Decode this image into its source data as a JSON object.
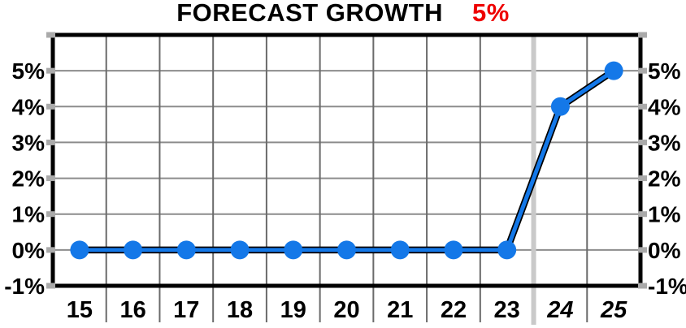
{
  "title": {
    "text": "FORECAST GROWTH",
    "value": "5%"
  },
  "colors": {
    "background": "#ffffff",
    "text": "#000000",
    "title_value": "#ee0000",
    "frame": "#000000",
    "grid_horizontal": "#8c8c8c",
    "grid_vertical": "#6a6a6a",
    "forecast_divider": "#c9c9c9",
    "axis_tick": "#aaaaaa",
    "series": "#1478e8",
    "series_edge": "#000000"
  },
  "chart_data": {
    "type": "line",
    "title": "FORECAST GROWTH",
    "title_value": "5%",
    "x_labels": [
      "15",
      "16",
      "17",
      "18",
      "19",
      "20",
      "21",
      "22",
      "23",
      "24",
      "25"
    ],
    "values": [
      0,
      0,
      0,
      0,
      0,
      0,
      0,
      0,
      0,
      4,
      5
    ],
    "forecast_start_index": 9,
    "forecast_labels": [
      "24",
      "25"
    ],
    "yticks": [
      5,
      4,
      3,
      2,
      1,
      0,
      -1
    ],
    "ytick_labels": [
      "5%",
      "4%",
      "3%",
      "2%",
      "1%",
      "0%",
      "-1%"
    ],
    "ylim": [
      -1,
      6
    ],
    "grid": true,
    "y_axis_sides": "both",
    "legend": "none",
    "marker": "circle"
  }
}
